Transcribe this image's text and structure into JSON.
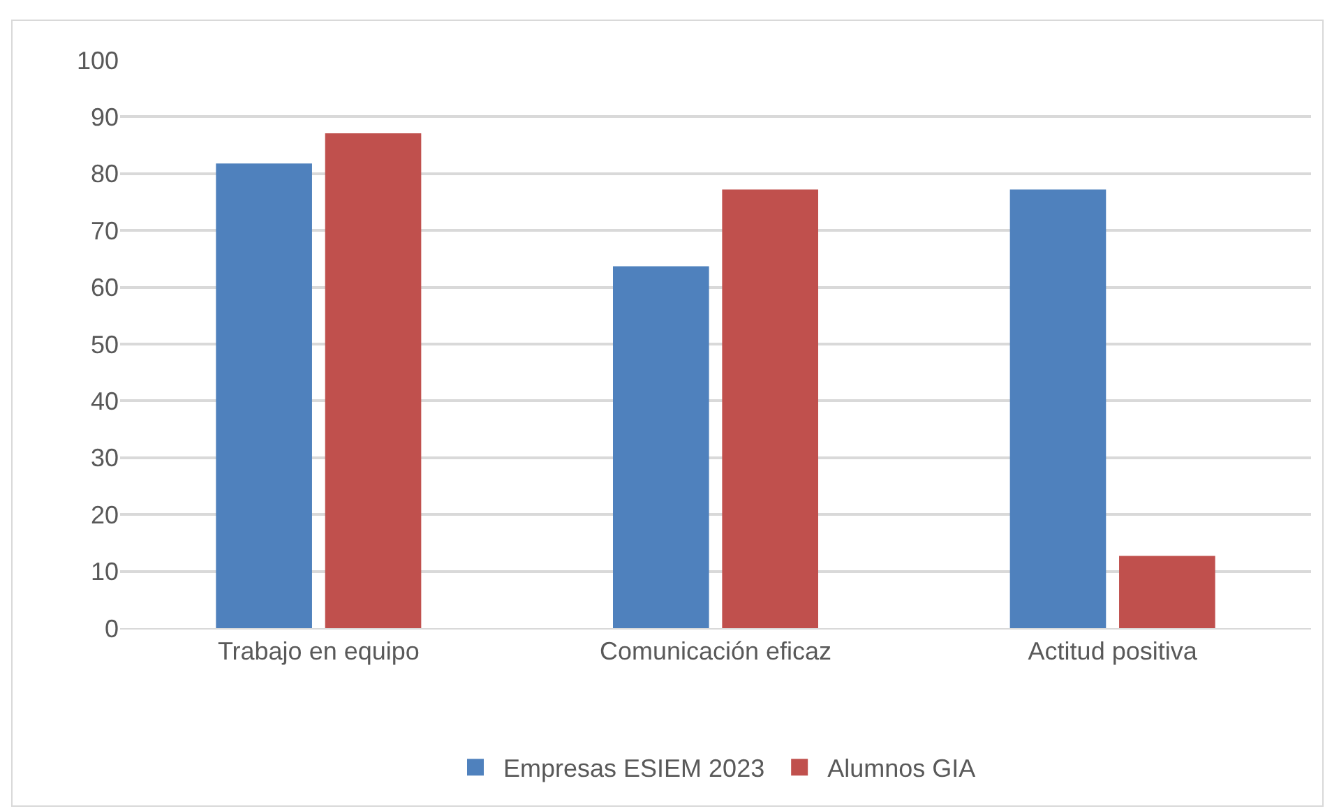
{
  "chart_data": {
    "type": "bar",
    "categories": [
      "Trabajo en equipo",
      "Comunicación eficaz",
      "Actitud positiva"
    ],
    "series": [
      {
        "name": "Empresas ESIEM 2023",
        "color": "#4f81bd",
        "values": [
          81.8,
          63.7,
          77.2
        ]
      },
      {
        "name": "Alumnos GIA",
        "color": "#c0504d",
        "values": [
          87.1,
          77.2,
          12.7
        ]
      }
    ],
    "ylim": [
      0,
      100
    ],
    "yticks": [
      0,
      10,
      20,
      30,
      40,
      50,
      60,
      70,
      80,
      90,
      100
    ],
    "grid": "y",
    "legend": "bottom"
  }
}
